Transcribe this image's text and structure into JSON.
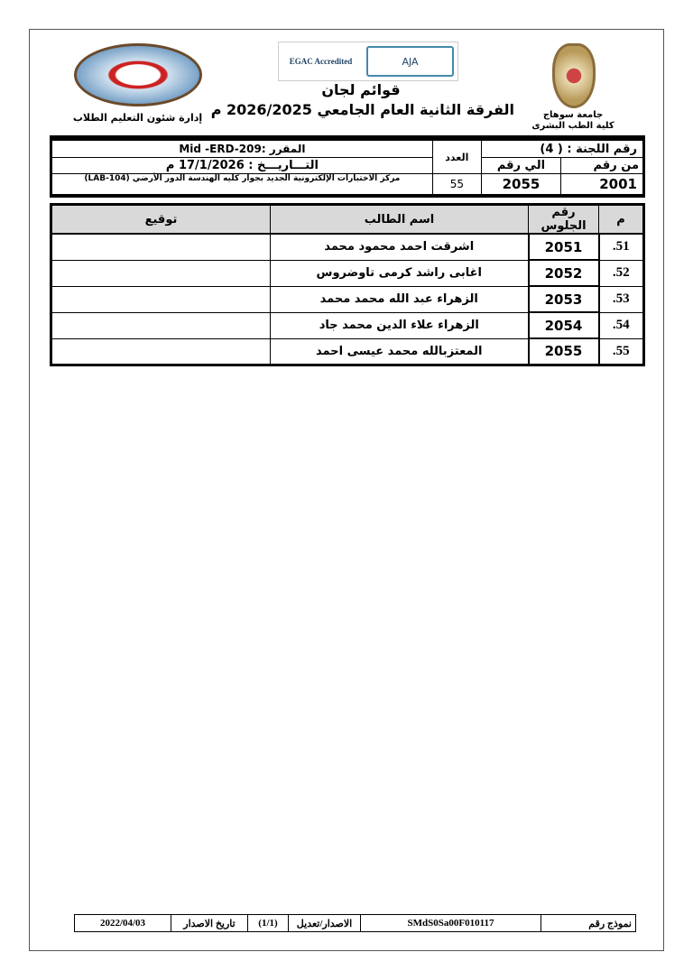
{
  "header": {
    "university": "جامعة سوهاج",
    "faculty": "كلية الطب البشرى",
    "department": "إدارة شئون التعليم الطلاب",
    "title": "قوائم لجان",
    "subtitle": "الفرقة الثانية العام الجامعي 2026/2025 م",
    "cert_left": "EGAC Accredited",
    "cert_right": "AJA"
  },
  "committee": {
    "committee_label": "رقم اللجنة : ( 4)",
    "count_label": "العدد",
    "count": "55",
    "from_label": "من رقم",
    "to_label": "الي رقم",
    "from": "2001",
    "to": "2055",
    "course": "المقرر :Mid -ERD-209",
    "date": "التـــاريـــخ : 17/1/2026 م",
    "location": "مركز الاختبارات الإلكترونية الجديد بجوار كليه الهندسة الدور الأرضي (LAB-104)"
  },
  "table": {
    "headers": [
      "م",
      "رقم الجلوس",
      "اسم الطالب",
      "توقيع"
    ],
    "rows": [
      {
        "n": "51.",
        "seat": "2051",
        "name": "اشرقت احمد محمود محمد"
      },
      {
        "n": "52.",
        "seat": "2052",
        "name": "اغابى راشد كرمى تاوضروس"
      },
      {
        "n": "53.",
        "seat": "2053",
        "name": "الزهراء عبد الله محمد محمد"
      },
      {
        "n": "54.",
        "seat": "2054",
        "name": "الزهراء علاء الدين محمد جاد"
      },
      {
        "n": "55.",
        "seat": "2055",
        "name": "المعتزبالله محمد عيسى احمد"
      }
    ]
  },
  "footer": {
    "form_label": "نموذج رقم",
    "form_no": "SMdS0Sa00F010117",
    "version_label": "الاصدار/تعديل",
    "version": "(1/1)",
    "date_label": "تاريخ الاصدار",
    "date": "2022/04/03"
  }
}
